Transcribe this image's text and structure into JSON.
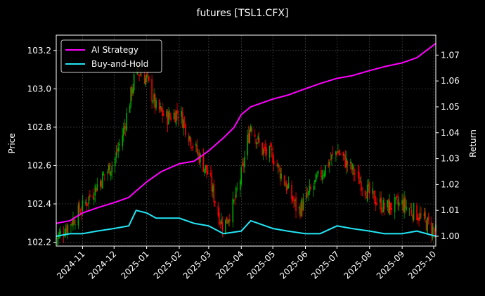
{
  "chart_data": {
    "type": "line",
    "title": "futures [TSL1.CFX]",
    "ylabel_left": "Price",
    "ylabel_right": "Return",
    "xlabel": "",
    "x_ticks": [
      "2024-11",
      "2024-12",
      "2025-01",
      "2025-02",
      "2025-03",
      "2025-04",
      "2025-05",
      "2025-06",
      "2025-07",
      "2025-08",
      "2025-09",
      "2025-10"
    ],
    "x_tick_dates": [
      "2024-11-01",
      "2024-12-01",
      "2025-01-01",
      "2025-02-01",
      "2025-03-01",
      "2025-04-01",
      "2025-05-01",
      "2025-06-01",
      "2025-07-01",
      "2025-08-01",
      "2025-09-01",
      "2025-10-01"
    ],
    "x_range": [
      "2024-10-07",
      "2025-10-03"
    ],
    "left_axis": {
      "ylim": [
        102.18,
        103.28
      ],
      "ticks": [
        "102.2",
        "102.4",
        "102.6",
        "102.8",
        "103.0",
        "103.2"
      ],
      "tick_values": [
        102.2,
        102.4,
        102.6,
        102.8,
        103.0,
        103.2
      ]
    },
    "right_axis": {
      "ylim": [
        0.9962,
        1.0777
      ],
      "ticks": [
        "1.00",
        "1.01",
        "1.02",
        "1.03",
        "1.04",
        "1.05",
        "1.06",
        "1.07"
      ],
      "tick_values": [
        1.0,
        1.01,
        1.02,
        1.03,
        1.04,
        1.05,
        1.06,
        1.07
      ]
    },
    "grid": true,
    "legend_position": "top-left",
    "series": [
      {
        "name": "AI Strategy",
        "axis": "right",
        "color": "#ff00ff",
        "points": [
          [
            "2024-10-07",
            1.005
          ],
          [
            "2024-10-20",
            1.006
          ],
          [
            "2024-11-01",
            1.009
          ],
          [
            "2024-11-15",
            1.011
          ],
          [
            "2024-12-01",
            1.013
          ],
          [
            "2024-12-15",
            1.015
          ],
          [
            "2024-12-22",
            1.0175
          ],
          [
            "2025-01-01",
            1.021
          ],
          [
            "2025-01-15",
            1.025
          ],
          [
            "2025-02-01",
            1.028
          ],
          [
            "2025-02-15",
            1.029
          ],
          [
            "2025-03-01",
            1.033
          ],
          [
            "2025-03-15",
            1.038
          ],
          [
            "2025-03-25",
            1.042
          ],
          [
            "2025-04-01",
            1.047
          ],
          [
            "2025-04-10",
            1.05
          ],
          [
            "2025-05-01",
            1.053
          ],
          [
            "2025-05-15",
            1.0545
          ],
          [
            "2025-06-01",
            1.057
          ],
          [
            "2025-06-15",
            1.059
          ],
          [
            "2025-07-01",
            1.061
          ],
          [
            "2025-07-15",
            1.062
          ],
          [
            "2025-08-01",
            1.064
          ],
          [
            "2025-08-15",
            1.0655
          ],
          [
            "2025-09-01",
            1.067
          ],
          [
            "2025-09-15",
            1.069
          ],
          [
            "2025-10-03",
            1.0745
          ]
        ]
      },
      {
        "name": "Buy-and-Hold",
        "axis": "right",
        "color": "#22e5f5",
        "points": [
          [
            "2024-10-07",
            1.0
          ],
          [
            "2024-10-20",
            1.001
          ],
          [
            "2024-11-01",
            1.001
          ],
          [
            "2024-11-15",
            1.002
          ],
          [
            "2024-12-01",
            1.003
          ],
          [
            "2024-12-15",
            1.004
          ],
          [
            "2024-12-22",
            1.01
          ],
          [
            "2025-01-01",
            1.009
          ],
          [
            "2025-01-10",
            1.007
          ],
          [
            "2025-02-01",
            1.007
          ],
          [
            "2025-02-15",
            1.005
          ],
          [
            "2025-03-01",
            1.004
          ],
          [
            "2025-03-15",
            1.001
          ],
          [
            "2025-04-01",
            1.002
          ],
          [
            "2025-04-10",
            1.006
          ],
          [
            "2025-05-01",
            1.003
          ],
          [
            "2025-05-15",
            1.002
          ],
          [
            "2025-06-01",
            1.001
          ],
          [
            "2025-06-15",
            1.001
          ],
          [
            "2025-07-01",
            1.004
          ],
          [
            "2025-07-15",
            1.003
          ],
          [
            "2025-08-01",
            1.002
          ],
          [
            "2025-08-15",
            1.001
          ],
          [
            "2025-09-01",
            1.001
          ],
          [
            "2025-09-15",
            1.002
          ],
          [
            "2025-10-03",
            1.0
          ]
        ]
      },
      {
        "name": "",
        "axis": "left",
        "render": "ohlc",
        "up_color": "#00aa00",
        "down_color": "#ff0000",
        "close_points": [
          [
            "2024-10-07",
            102.22
          ],
          [
            "2024-10-20",
            102.3
          ],
          [
            "2024-11-01",
            102.38
          ],
          [
            "2024-11-15",
            102.5
          ],
          [
            "2024-12-01",
            102.62
          ],
          [
            "2024-12-10",
            102.78
          ],
          [
            "2024-12-22",
            103.1
          ],
          [
            "2025-01-01",
            103.05
          ],
          [
            "2025-01-10",
            102.9
          ],
          [
            "2025-01-20",
            102.85
          ],
          [
            "2025-02-01",
            102.88
          ],
          [
            "2025-02-15",
            102.7
          ],
          [
            "2025-03-01",
            102.55
          ],
          [
            "2025-03-10",
            102.35
          ],
          [
            "2025-03-15",
            102.28
          ],
          [
            "2025-03-25",
            102.4
          ],
          [
            "2025-04-01",
            102.55
          ],
          [
            "2025-04-10",
            102.82
          ],
          [
            "2025-04-20",
            102.68
          ],
          [
            "2025-05-01",
            102.65
          ],
          [
            "2025-05-15",
            102.48
          ],
          [
            "2025-05-25",
            102.36
          ],
          [
            "2025-06-01",
            102.42
          ],
          [
            "2025-06-15",
            102.55
          ],
          [
            "2025-07-01",
            102.68
          ],
          [
            "2025-07-15",
            102.58
          ],
          [
            "2025-08-01",
            102.45
          ],
          [
            "2025-08-15",
            102.38
          ],
          [
            "2025-09-01",
            102.4
          ],
          [
            "2025-09-15",
            102.35
          ],
          [
            "2025-10-03",
            102.25
          ]
        ]
      }
    ]
  }
}
